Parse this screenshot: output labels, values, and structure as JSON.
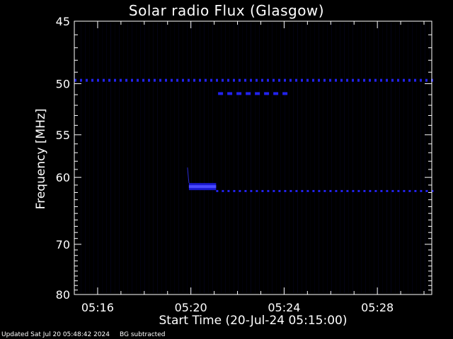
{
  "chart_data": {
    "type": "heatmap",
    "title": "Solar radio Flux (Glasgow)",
    "xlabel": "Start Time (20-Jul-24 05:15:00)",
    "ylabel": "Frequency [MHz]",
    "xlim": [
      "05:15:00",
      "05:30:20"
    ],
    "ylim": [
      45,
      80
    ],
    "x_ticks": [
      "05:16",
      "05:20",
      "05:24",
      "05:28"
    ],
    "y_ticks": [
      45,
      50,
      55,
      60,
      70,
      80
    ],
    "colors": {
      "background": "#000000",
      "axes": "#ffffff",
      "emission": "#2222ee"
    },
    "features": [
      {
        "name": "50 MHz band",
        "freq_mhz": 49.7,
        "start": "05:15:00",
        "end": "05:30:20",
        "dashed": true
      },
      {
        "name": "51 MHz band",
        "freq_mhz": 50.9,
        "start": "05:21:10",
        "end": "05:24:15",
        "dashed": true
      },
      {
        "name": "burst",
        "freq_mhz": 61.3,
        "start": "05:19:55",
        "end": "05:21:05",
        "dashed": false
      },
      {
        "name": "61 MHz band",
        "freq_mhz": 61.8,
        "start": "05:21:05",
        "end": "05:30:20",
        "dashed": true
      }
    ]
  },
  "footer": {
    "updated": "Updated Sat Jul 20 05:48:42 2024",
    "bg_note": "BG subtracted"
  }
}
